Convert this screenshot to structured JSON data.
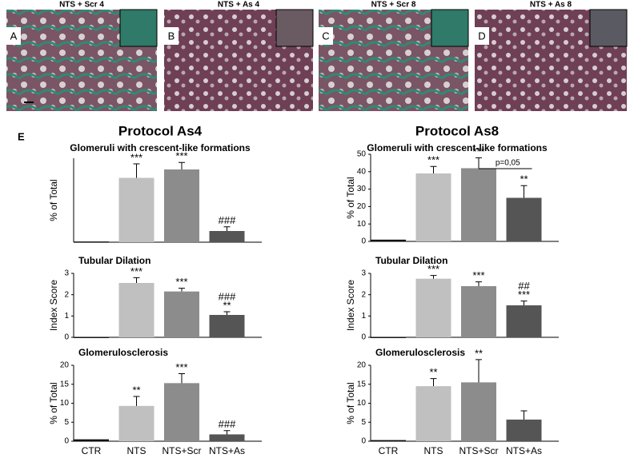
{
  "panels": [
    {
      "letter": "A",
      "label": "NTS + Scr 4"
    },
    {
      "letter": "B",
      "label": "NTS + As 4"
    },
    {
      "letter": "C",
      "label": "NTS + Scr 8"
    },
    {
      "letter": "D",
      "label": "NTS + As 8"
    }
  ],
  "figure_label": "E",
  "chart_data": [
    {
      "type": "bar",
      "title": "Protocol As4",
      "subtitle": "Glomeruli with crescent-like formations",
      "ylabel": "% of Total",
      "categories": [
        null,
        null,
        null,
        null
      ],
      "values": [
        0.5,
        46,
        52,
        8
      ],
      "errors": [
        null,
        10,
        5,
        3
      ],
      "annotations": [
        null,
        [
          "***"
        ],
        [
          "***"
        ],
        [
          "###"
        ]
      ],
      "colors": [
        "#111111",
        "#c0c0c0",
        "#8c8c8c",
        "#555555"
      ],
      "ylim": [
        0,
        60
      ]
    },
    {
      "type": "bar",
      "title": "Protocol As8",
      "subtitle": "Glomeruli with crescent-like formations",
      "ylabel": "% of Total",
      "categories": [
        null,
        null,
        null,
        null
      ],
      "values": [
        1,
        39,
        42,
        25
      ],
      "errors": [
        null,
        4,
        6,
        7
      ],
      "annotations": [
        null,
        [
          "***"
        ],
        [
          "***"
        ],
        [
          "**"
        ]
      ],
      "bracket": "p=0,05",
      "colors": [
        "#111111",
        "#c0c0c0",
        "#8c8c8c",
        "#555555"
      ],
      "ylim": [
        0,
        50
      ],
      "yticks": [
        0,
        10,
        20,
        30,
        40,
        50
      ]
    },
    {
      "type": "bar",
      "title": "Tubular Dilation",
      "ylabel": "Index Score",
      "categories": [
        null,
        null,
        null,
        null
      ],
      "values": [
        0.02,
        2.55,
        2.15,
        1.05
      ],
      "errors": [
        null,
        0.25,
        0.15,
        0.15
      ],
      "annotations": [
        null,
        [
          "***"
        ],
        [
          "***"
        ],
        [
          "###",
          "**"
        ]
      ],
      "colors": [
        "#111111",
        "#c0c0c0",
        "#8c8c8c",
        "#555555"
      ],
      "ylim": [
        0,
        3
      ],
      "yticks": [
        0,
        1,
        2,
        3
      ]
    },
    {
      "type": "bar",
      "title": "Tubular Dilation",
      "ylabel": "Index Score",
      "categories": [
        null,
        null,
        null,
        null
      ],
      "values": [
        0.02,
        2.75,
        2.4,
        1.5
      ],
      "errors": [
        null,
        0.15,
        0.2,
        0.2
      ],
      "annotations": [
        null,
        [
          "***"
        ],
        [
          "***"
        ],
        [
          "##",
          "***"
        ]
      ],
      "colors": [
        "#111111",
        "#c0c0c0",
        "#8c8c8c",
        "#555555"
      ],
      "ylim": [
        0,
        3
      ],
      "yticks": [
        0,
        1,
        2,
        3
      ]
    },
    {
      "type": "bar",
      "title": "Glomerulosclerosis",
      "ylabel": "% of Total",
      "categories": [
        "CTR",
        "NTS",
        "NTS+Scr",
        "NTS+As"
      ],
      "values": [
        0.5,
        9.3,
        15.3,
        1.8
      ],
      "errors": [
        null,
        2.5,
        2.5,
        1
      ],
      "annotations": [
        null,
        [
          "**"
        ],
        [
          "***"
        ],
        [
          "###"
        ]
      ],
      "colors": [
        "#111111",
        "#c0c0c0",
        "#8c8c8c",
        "#555555"
      ],
      "ylim": [
        0,
        20
      ],
      "yticks": [
        0,
        5,
        10,
        15,
        20
      ]
    },
    {
      "type": "bar",
      "title": "Glomerulosclerosis",
      "ylabel": "% of Total",
      "categories": [
        "CTR",
        "NTS",
        "NTS+Scr",
        "NTS+As"
      ],
      "values": [
        0.3,
        14.5,
        15.5,
        5.7
      ],
      "errors": [
        null,
        2,
        6,
        2.3
      ],
      "annotations": [
        null,
        [
          "**"
        ],
        [
          "**"
        ],
        null
      ],
      "colors": [
        "#111111",
        "#c0c0c0",
        "#8c8c8c",
        "#555555"
      ],
      "ylim": [
        0,
        20
      ],
      "yticks": [
        0,
        5,
        10,
        15,
        20
      ]
    }
  ]
}
